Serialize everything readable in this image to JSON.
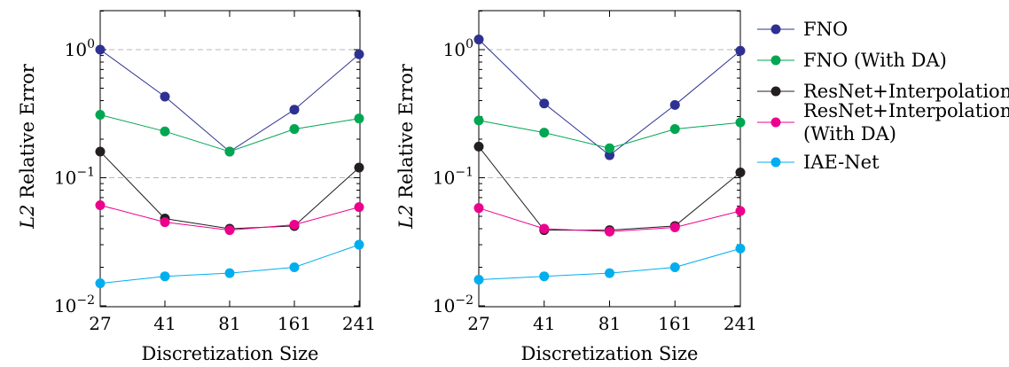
{
  "chart_data": [
    {
      "type": "line",
      "title": "",
      "xlabel": "Discretization Size",
      "ylabel_var": "L2",
      "ylabel_rest": " Relative Error",
      "yscale": "log",
      "ylim": [
        0.01,
        2
      ],
      "categories": [
        "27",
        "41",
        "81",
        "161",
        "241"
      ],
      "ytick_labels": [
        {
          "value": 1,
          "base": "10",
          "exp": "0"
        },
        {
          "value": 0.1,
          "base": "10",
          "exp": "−1"
        },
        {
          "value": 0.01,
          "base": "10",
          "exp": "−2"
        }
      ],
      "grid": "horizontal dashed at decades",
      "series": [
        {
          "name": "FNO",
          "color": "#2e3192",
          "values": [
            1.0,
            0.43,
            0.16,
            0.34,
            0.92
          ]
        },
        {
          "name": "FNO (With DA)",
          "color": "#00a651",
          "values": [
            0.31,
            0.23,
            0.16,
            0.24,
            0.29
          ]
        },
        {
          "name": "ResNet+Interpolation",
          "color": "#231f20",
          "values": [
            0.16,
            0.048,
            0.04,
            0.042,
            0.12
          ]
        },
        {
          "name": "ResNet+Interpolation (With DA)",
          "color": "#ec008c",
          "values": [
            0.061,
            0.045,
            0.039,
            0.043,
            0.059
          ]
        },
        {
          "name": "IAE-Net",
          "color": "#00aeef",
          "values": [
            0.015,
            0.017,
            0.018,
            0.02,
            0.03
          ]
        }
      ]
    },
    {
      "type": "line",
      "title": "",
      "xlabel": "Discretization Size",
      "ylabel_var": "L2",
      "ylabel_rest": " Relative Error",
      "yscale": "log",
      "ylim": [
        0.01,
        2
      ],
      "categories": [
        "27",
        "41",
        "81",
        "161",
        "241"
      ],
      "ytick_labels": [
        {
          "value": 1,
          "base": "10",
          "exp": "0"
        },
        {
          "value": 0.1,
          "base": "10",
          "exp": "−1"
        },
        {
          "value": 0.01,
          "base": "10",
          "exp": "−2"
        }
      ],
      "grid": "horizontal dashed at decades",
      "series": [
        {
          "name": "FNO",
          "color": "#2e3192",
          "values": [
            1.2,
            0.38,
            0.15,
            0.37,
            0.98
          ]
        },
        {
          "name": "FNO (With DA)",
          "color": "#00a651",
          "values": [
            0.28,
            0.225,
            0.17,
            0.24,
            0.27
          ]
        },
        {
          "name": "ResNet+Interpolation",
          "color": "#231f20",
          "values": [
            0.175,
            0.039,
            0.039,
            0.042,
            0.11
          ]
        },
        {
          "name": "ResNet+Interpolation (With DA)",
          "color": "#ec008c",
          "values": [
            0.058,
            0.04,
            0.038,
            0.041,
            0.055
          ]
        },
        {
          "name": "IAE-Net",
          "color": "#00aeef",
          "values": [
            0.016,
            0.017,
            0.018,
            0.02,
            0.028
          ]
        }
      ]
    }
  ],
  "legend": {
    "placement": "right",
    "items": [
      {
        "lines": [
          "FNO"
        ],
        "color": "#2e3192"
      },
      {
        "lines": [
          "FNO (With DA)"
        ],
        "color": "#00a651"
      },
      {
        "lines": [
          "ResNet+Interpolation"
        ],
        "color": "#231f20"
      },
      {
        "lines": [
          "ResNet+Interpolation",
          "(With DA)"
        ],
        "color": "#ec008c"
      },
      {
        "lines": [
          "IAE-Net"
        ],
        "color": "#00aeef"
      }
    ]
  }
}
